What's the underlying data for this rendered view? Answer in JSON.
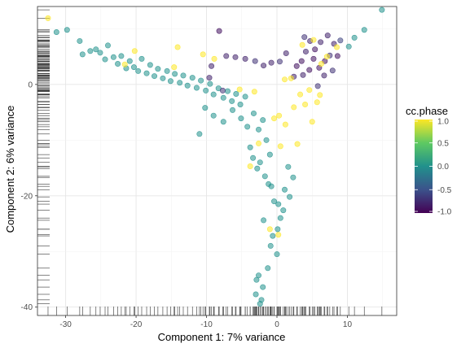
{
  "chart_data": {
    "type": "scatter",
    "title": "",
    "xlabel": "Component 1: 7% variance",
    "ylabel": "Component 2: 6% variance",
    "xlim": [
      -34,
      17
    ],
    "ylim": [
      -41.5,
      14
    ],
    "x_ticks": [
      -30,
      -20,
      -10,
      0,
      10
    ],
    "y_ticks": [
      0,
      -20,
      -40
    ],
    "x_tick_labels": [
      "-30",
      "-20",
      "-10",
      "0",
      "10"
    ],
    "y_tick_labels": [
      "0",
      "-20",
      "-40"
    ],
    "grid": true,
    "rug": [
      "bottom",
      "left"
    ],
    "color": {
      "variable": "cc.phase",
      "legend_title": "cc.phase",
      "range": [
        -1,
        1
      ],
      "legend_ticks": [
        1.0,
        0.5,
        0.0,
        -0.5,
        -1.0
      ],
      "legend_tick_labels": [
        "1.0",
        "0.5",
        "0.0",
        "-0.5",
        "-1.0"
      ],
      "legend_position": "right",
      "palette": [
        "#440154",
        "#3b528b",
        "#21918c",
        "#5ec962",
        "#fde725"
      ]
    },
    "points": [
      {
        "x": -31.3,
        "y": 9.4,
        "c": 0
      },
      {
        "x": -29.8,
        "y": 9.8,
        "c": 0
      },
      {
        "x": -28.0,
        "y": 7.8,
        "c": 0
      },
      {
        "x": -27.6,
        "y": 5.4,
        "c": 0
      },
      {
        "x": -26.5,
        "y": 6.0,
        "c": 0
      },
      {
        "x": -25.7,
        "y": 6.3,
        "c": 0
      },
      {
        "x": -25.1,
        "y": 5.7,
        "c": 0
      },
      {
        "x": -24.4,
        "y": 4.5,
        "c": 0
      },
      {
        "x": -24.0,
        "y": 7.0,
        "c": 0
      },
      {
        "x": -23.2,
        "y": 4.9,
        "c": 0
      },
      {
        "x": -22.6,
        "y": 3.7,
        "c": 0
      },
      {
        "x": -22.1,
        "y": 5.1,
        "c": 0
      },
      {
        "x": -21.4,
        "y": 2.9,
        "c": 0
      },
      {
        "x": -20.9,
        "y": 4.2,
        "c": 0
      },
      {
        "x": -20.3,
        "y": 3.1,
        "c": 0
      },
      {
        "x": -19.7,
        "y": 2.4,
        "c": 0
      },
      {
        "x": -19.2,
        "y": 4.6,
        "c": 0
      },
      {
        "x": -18.5,
        "y": 2.0,
        "c": 0
      },
      {
        "x": -18.0,
        "y": 3.5,
        "c": 0
      },
      {
        "x": -17.4,
        "y": 1.5,
        "c": 0
      },
      {
        "x": -16.9,
        "y": 2.8,
        "c": 0
      },
      {
        "x": -16.2,
        "y": 1.1,
        "c": 0
      },
      {
        "x": -15.6,
        "y": 2.4,
        "c": 0
      },
      {
        "x": -15.1,
        "y": 0.6,
        "c": 0
      },
      {
        "x": -14.5,
        "y": 1.9,
        "c": 0
      },
      {
        "x": -13.8,
        "y": 0.3,
        "c": 0
      },
      {
        "x": -13.3,
        "y": 1.6,
        "c": 0
      },
      {
        "x": -12.7,
        "y": -0.2,
        "c": 0
      },
      {
        "x": -12.0,
        "y": 1.2,
        "c": 0
      },
      {
        "x": -11.4,
        "y": -0.6,
        "c": 0
      },
      {
        "x": -10.8,
        "y": 0.7,
        "c": 0
      },
      {
        "x": -10.1,
        "y": -1.1,
        "c": 0
      },
      {
        "x": -9.5,
        "y": 0.1,
        "c": 0
      },
      {
        "x": -9.0,
        "y": -1.8,
        "c": 0
      },
      {
        "x": -8.3,
        "y": -0.7,
        "c": 0
      },
      {
        "x": -7.6,
        "y": -2.4,
        "c": 0
      },
      {
        "x": -7.0,
        "y": -1.2,
        "c": 0
      },
      {
        "x": -6.4,
        "y": -3.0,
        "c": 0
      },
      {
        "x": -5.8,
        "y": -1.7,
        "c": 0
      },
      {
        "x": -5.2,
        "y": -3.6,
        "c": 0
      },
      {
        "x": -4.5,
        "y": -2.2,
        "c": 0
      },
      {
        "x": -11.0,
        "y": -8.9,
        "c": 0
      },
      {
        "x": -10.2,
        "y": -4.2,
        "c": 0
      },
      {
        "x": -9.0,
        "y": -5.6,
        "c": 0
      },
      {
        "x": -7.6,
        "y": -6.7,
        "c": 0
      },
      {
        "x": -6.3,
        "y": -4.6,
        "c": 0
      },
      {
        "x": -5.1,
        "y": -6.1,
        "c": 0
      },
      {
        "x": -4.2,
        "y": -7.6,
        "c": 0
      },
      {
        "x": -3.3,
        "y": -5.2,
        "c": 0
      },
      {
        "x": -2.6,
        "y": -8.1,
        "c": 0
      },
      {
        "x": -2.0,
        "y": -6.4,
        "c": 0
      },
      {
        "x": -1.5,
        "y": -10.0,
        "c": 0
      },
      {
        "x": -1.0,
        "y": -12.6,
        "c": 0
      },
      {
        "x": -2.4,
        "y": -14.0,
        "c": 0
      },
      {
        "x": -1.7,
        "y": -16.5,
        "c": 0
      },
      {
        "x": -1.2,
        "y": -17.9,
        "c": 0
      },
      {
        "x": -0.8,
        "y": -18.3,
        "c": 0
      },
      {
        "x": -0.4,
        "y": -21.0,
        "c": 0
      },
      {
        "x": 0.2,
        "y": -21.5,
        "c": 0
      },
      {
        "x": 0.5,
        "y": -24.0,
        "c": 0
      },
      {
        "x": 0.1,
        "y": -26.0,
        "c": 0
      },
      {
        "x": -0.6,
        "y": -27.2,
        "c": 0
      },
      {
        "x": -1.9,
        "y": -24.4,
        "c": 0
      },
      {
        "x": -0.9,
        "y": -29.0,
        "c": 0
      },
      {
        "x": 0.0,
        "y": -30.5,
        "c": 0
      },
      {
        "x": -1.3,
        "y": -33.0,
        "c": 0
      },
      {
        "x": -2.6,
        "y": -34.3,
        "c": 0
      },
      {
        "x": -2.9,
        "y": -35.1,
        "c": 0
      },
      {
        "x": -2.0,
        "y": -36.4,
        "c": 0
      },
      {
        "x": -3.0,
        "y": -37.7,
        "c": 0
      },
      {
        "x": -2.2,
        "y": -38.7,
        "c": 0
      },
      {
        "x": -2.4,
        "y": -39.4,
        "c": 0
      },
      {
        "x": -3.8,
        "y": -11.3,
        "c": 0
      },
      {
        "x": -3.4,
        "y": -13.2,
        "c": 0
      },
      {
        "x": -2.8,
        "y": -15.1,
        "c": 0
      },
      {
        "x": 1.6,
        "y": -14.8,
        "c": 0
      },
      {
        "x": 2.3,
        "y": -16.7,
        "c": 0
      },
      {
        "x": 1.1,
        "y": -18.9,
        "c": 0
      },
      {
        "x": 1.8,
        "y": -20.2,
        "c": 0
      },
      {
        "x": 0.9,
        "y": -22.6,
        "c": 0
      },
      {
        "x": 14.9,
        "y": 13.4,
        "c": 0
      },
      {
        "x": 12.4,
        "y": 9.8,
        "c": 0
      },
      {
        "x": 11.0,
        "y": 8.4,
        "c": 0
      },
      {
        "x": 10.2,
        "y": 6.8,
        "c": 0
      },
      {
        "x": 9.0,
        "y": 7.9,
        "c": -0.6
      },
      {
        "x": 7.5,
        "y": 5.2,
        "c": -0.7
      },
      {
        "x": 6.2,
        "y": 7.6,
        "c": -0.8
      },
      {
        "x": 5.4,
        "y": 6.3,
        "c": -0.9
      },
      {
        "x": 4.7,
        "y": 7.8,
        "c": -0.8
      },
      {
        "x": 6.8,
        "y": 4.2,
        "c": -0.9
      },
      {
        "x": 7.9,
        "y": 2.5,
        "c": -0.7
      },
      {
        "x": 6.0,
        "y": 3.0,
        "c": -0.9
      },
      {
        "x": 5.2,
        "y": 4.6,
        "c": -0.9
      },
      {
        "x": 4.1,
        "y": 5.9,
        "c": -0.8
      },
      {
        "x": 3.5,
        "y": 4.2,
        "c": -0.9
      },
      {
        "x": 2.8,
        "y": 3.3,
        "c": -0.9
      },
      {
        "x": 4.6,
        "y": 2.6,
        "c": -0.9
      },
      {
        "x": 3.7,
        "y": 1.7,
        "c": -0.8
      },
      {
        "x": 2.4,
        "y": 1.4,
        "c": -0.8
      },
      {
        "x": 1.3,
        "y": 5.6,
        "c": -0.8
      },
      {
        "x": 0.4,
        "y": 4.1,
        "c": -0.7
      },
      {
        "x": -0.8,
        "y": 3.9,
        "c": -0.8
      },
      {
        "x": -1.9,
        "y": 3.4,
        "c": -0.8
      },
      {
        "x": -3.1,
        "y": 4.2,
        "c": -0.7
      },
      {
        "x": -4.5,
        "y": 4.6,
        "c": -0.8
      },
      {
        "x": -5.9,
        "y": 4.9,
        "c": -0.8
      },
      {
        "x": -7.2,
        "y": 5.1,
        "c": -0.8
      },
      {
        "x": -9.3,
        "y": 3.3,
        "c": -0.8
      },
      {
        "x": -9.6,
        "y": 1.2,
        "c": -0.8
      },
      {
        "x": -7.7,
        "y": -1.1,
        "c": -0.7
      },
      {
        "x": -8.2,
        "y": 9.6,
        "c": -0.9
      },
      {
        "x": 8.6,
        "y": 5.1,
        "c": -0.9
      },
      {
        "x": 8.1,
        "y": 7.3,
        "c": -0.8
      },
      {
        "x": 7.2,
        "y": 8.8,
        "c": -0.8
      },
      {
        "x": 3.9,
        "y": 8.5,
        "c": -0.7
      },
      {
        "x": 6.7,
        "y": 1.6,
        "c": -0.8
      },
      {
        "x": 5.8,
        "y": -0.3,
        "c": -0.7
      },
      {
        "x": -32.5,
        "y": 11.9,
        "c": 1
      },
      {
        "x": -21.6,
        "y": 3.6,
        "c": 1
      },
      {
        "x": -20.2,
        "y": 6.0,
        "c": 1
      },
      {
        "x": -14.6,
        "y": 3.1,
        "c": 1
      },
      {
        "x": -14.1,
        "y": 6.7,
        "c": 1
      },
      {
        "x": -10.5,
        "y": 5.4,
        "c": 1
      },
      {
        "x": -8.9,
        "y": 4.6,
        "c": 1
      },
      {
        "x": -5.3,
        "y": -0.9,
        "c": 1
      },
      {
        "x": -3.2,
        "y": -1.3,
        "c": 1
      },
      {
        "x": -0.4,
        "y": -6.1,
        "c": 1
      },
      {
        "x": 0.3,
        "y": -5.6,
        "c": 1
      },
      {
        "x": -2.6,
        "y": -10.6,
        "c": 1
      },
      {
        "x": 0.5,
        "y": -11.1,
        "c": 1
      },
      {
        "x": 1.2,
        "y": -7.2,
        "c": 1
      },
      {
        "x": 2.4,
        "y": -4.1,
        "c": 1
      },
      {
        "x": 2.9,
        "y": -10.7,
        "c": 1
      },
      {
        "x": 3.3,
        "y": -1.8,
        "c": 1
      },
      {
        "x": 4.0,
        "y": -3.6,
        "c": 1
      },
      {
        "x": 4.6,
        "y": -1.0,
        "c": 1
      },
      {
        "x": 5.0,
        "y": -6.7,
        "c": 1
      },
      {
        "x": 5.7,
        "y": -3.2,
        "c": 1
      },
      {
        "x": 6.1,
        "y": -1.9,
        "c": 1
      },
      {
        "x": 6.3,
        "y": 3.7,
        "c": 1
      },
      {
        "x": 7.1,
        "y": 5.0,
        "c": 1
      },
      {
        "x": 5.2,
        "y": 8.0,
        "c": 1
      },
      {
        "x": 3.6,
        "y": 7.1,
        "c": 1
      },
      {
        "x": 2.0,
        "y": 1.1,
        "c": 1
      },
      {
        "x": 1.1,
        "y": 0.9,
        "c": 1
      },
      {
        "x": -1.0,
        "y": -26.0,
        "c": 1
      },
      {
        "x": 0.2,
        "y": -27.0,
        "c": 1
      },
      {
        "x": -3.8,
        "y": -14.7,
        "c": 1
      },
      {
        "x": 8.5,
        "y": 6.7,
        "c": 1
      }
    ]
  }
}
